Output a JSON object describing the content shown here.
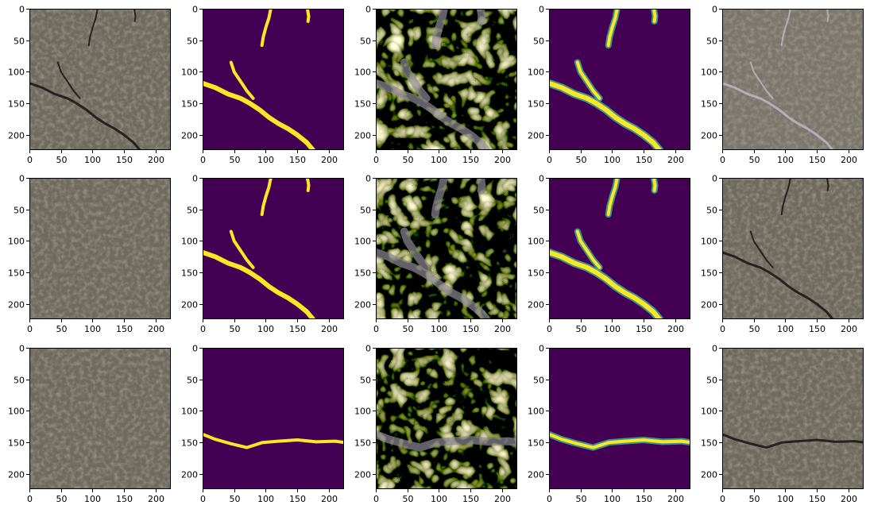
{
  "figure": {
    "rows": 3,
    "cols": 5,
    "axis_range": [
      0,
      224
    ],
    "x_ticks": [
      "0",
      "50",
      "100",
      "150",
      "200"
    ],
    "y_ticks": [
      "0",
      "50",
      "100",
      "150",
      "200"
    ],
    "colors": {
      "mask_background": "#440154",
      "mask_foreground": "#fde725",
      "mask_mid": "#3bb6a0",
      "asphalt_base": "#6f6a5e",
      "asphalt_dark": "#4e4a40",
      "crack_dark": "#1c1a16",
      "crack_light": "#b9b4c0"
    },
    "panels": [
      {
        "row": 0,
        "col": 0,
        "kind": "photo",
        "crack": "diag"
      },
      {
        "row": 0,
        "col": 1,
        "kind": "mask",
        "crack": "diag"
      },
      {
        "row": 0,
        "col": 2,
        "kind": "pattern",
        "crack": "diag"
      },
      {
        "row": 0,
        "col": 3,
        "kind": "pred",
        "crack": "diag"
      },
      {
        "row": 0,
        "col": 4,
        "kind": "photo-light",
        "crack": "diag"
      },
      {
        "row": 1,
        "col": 0,
        "kind": "photo-plain",
        "crack": "none"
      },
      {
        "row": 1,
        "col": 1,
        "kind": "mask",
        "crack": "diag"
      },
      {
        "row": 1,
        "col": 2,
        "kind": "pattern",
        "crack": "diag"
      },
      {
        "row": 1,
        "col": 3,
        "kind": "pred",
        "crack": "diag"
      },
      {
        "row": 1,
        "col": 4,
        "kind": "photo",
        "crack": "diag"
      },
      {
        "row": 2,
        "col": 0,
        "kind": "photo-plain",
        "crack": "none"
      },
      {
        "row": 2,
        "col": 1,
        "kind": "mask",
        "crack": "horiz"
      },
      {
        "row": 2,
        "col": 2,
        "kind": "pattern",
        "crack": "horiz"
      },
      {
        "row": 2,
        "col": 3,
        "kind": "pred",
        "crack": "horiz"
      },
      {
        "row": 2,
        "col": 4,
        "kind": "photo",
        "crack": "horiz"
      }
    ]
  }
}
